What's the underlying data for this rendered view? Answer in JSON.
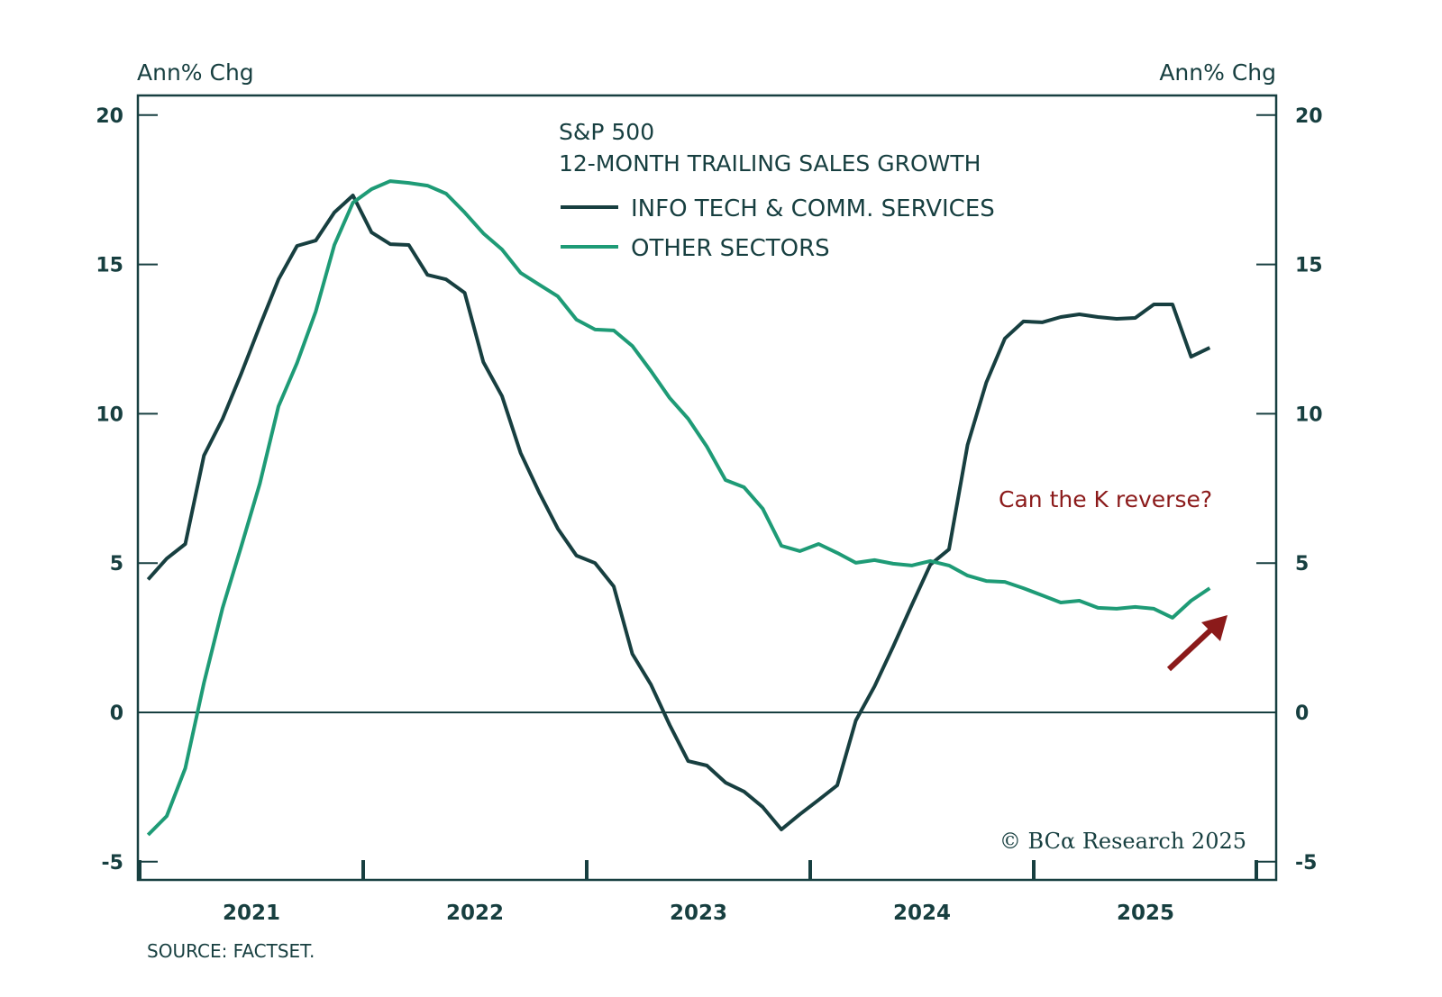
{
  "chart_data": {
    "type": "line",
    "title": "S&P 500",
    "subtitle": "12-MONTH TRAILING SALES GROWTH",
    "ylabel_left": "Ann% Chg",
    "ylabel_right": "Ann% Chg",
    "xlabel": "",
    "ylim": [
      -5,
      20
    ],
    "yticks": [
      -5,
      0,
      5,
      10,
      15,
      20
    ],
    "ytick_labels": [
      "-5",
      "0",
      "5",
      "10",
      "15",
      "20"
    ],
    "xlim": [
      "2021-01",
      "2025-12"
    ],
    "xtick_labels": [
      "2021",
      "2022",
      "2023",
      "2024",
      "2025"
    ],
    "grid": false,
    "zero_line": true,
    "legend_position": "top-center",
    "x_start": "2021-01",
    "x_frequency": "monthly",
    "series": [
      {
        "name": "INFO TECH & COMM. SERVICES",
        "color": "#173f40",
        "values": [
          4.45,
          5.15,
          5.64,
          8.6,
          9.83,
          11.34,
          12.94,
          14.5,
          15.62,
          15.8,
          16.74,
          17.31,
          16.07,
          15.68,
          15.65,
          14.65,
          14.5,
          14.05,
          11.73,
          10.59,
          8.69,
          7.36,
          6.15,
          5.25,
          5.0,
          4.22,
          1.96,
          0.93,
          -0.42,
          -1.63,
          -1.78,
          -2.35,
          -2.65,
          -3.17,
          -3.92,
          -3.41,
          -2.93,
          -2.44,
          -0.27,
          0.87,
          2.2,
          3.59,
          4.95,
          5.46,
          8.96,
          11.04,
          12.52,
          13.09,
          13.06,
          13.24,
          13.33,
          13.24,
          13.18,
          13.21,
          13.66,
          13.66,
          11.91,
          12.21
        ]
      },
      {
        "name": "OTHER SECTORS",
        "color": "#1e9b76",
        "values": [
          -4.1,
          -3.47,
          -1.87,
          0.99,
          3.5,
          5.55,
          7.66,
          10.25,
          11.7,
          13.42,
          15.65,
          17.07,
          17.52,
          17.79,
          17.73,
          17.64,
          17.37,
          16.74,
          16.04,
          15.5,
          14.72,
          14.32,
          13.93,
          13.15,
          12.82,
          12.79,
          12.27,
          11.43,
          10.53,
          9.83,
          8.9,
          7.78,
          7.54,
          6.82,
          5.58,
          5.4,
          5.64,
          5.34,
          5.01,
          5.1,
          4.98,
          4.92,
          5.07,
          4.92,
          4.58,
          4.4,
          4.37,
          4.16,
          3.92,
          3.68,
          3.74,
          3.5,
          3.47,
          3.53,
          3.47,
          3.17,
          3.74,
          4.16
        ]
      }
    ],
    "annotations": [
      {
        "text": "Can the K reverse?",
        "color": "#8b1a1a",
        "kind": "text",
        "x": "2025-02",
        "y": 7.2
      },
      {
        "kind": "arrow",
        "color": "#8b1a1a",
        "direction": "up-right",
        "near": "end of OTHER SECTORS series"
      }
    ],
    "copyright": "© BCα Research 2025",
    "source": "SOURCE: FACTSET."
  }
}
